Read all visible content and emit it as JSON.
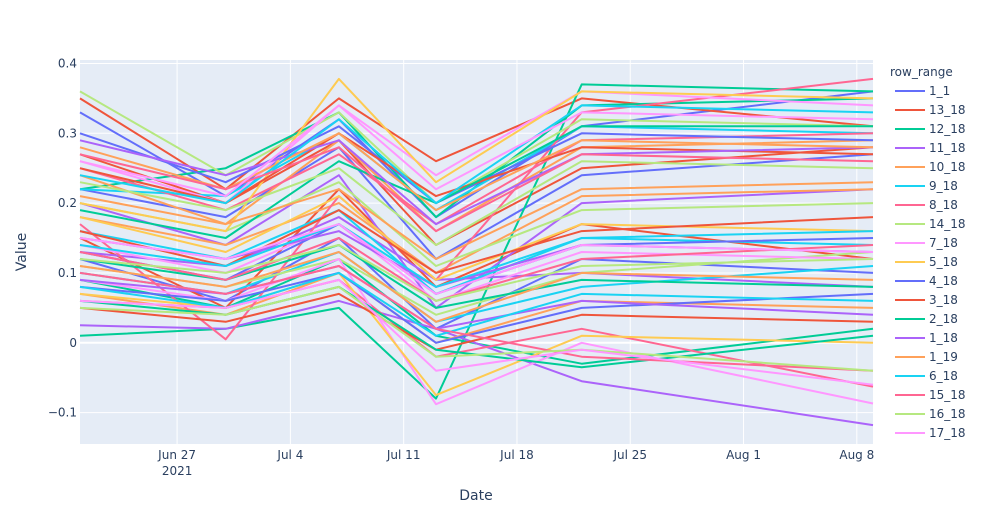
{
  "chart_data": {
    "type": "line",
    "title": "",
    "xlabel": "Date",
    "ylabel": "Value",
    "x_dates": [
      "2021-06-21",
      "2021-06-30",
      "2021-07-07",
      "2021-07-13",
      "2021-07-22",
      "2021-08-09"
    ],
    "xlim": [
      "2021-06-21",
      "2021-08-09"
    ],
    "ylim": [
      -0.145,
      0.405
    ],
    "x_tick_labels": [
      "Jun 27",
      "Jul 4",
      "Jul 11",
      "Jul 18",
      "Jul 25",
      "Aug 1",
      "Aug 8"
    ],
    "x_tick_dates": [
      "2021-06-27",
      "2021-07-04",
      "2021-07-11",
      "2021-07-18",
      "2021-07-25",
      "2021-08-01",
      "2021-08-08"
    ],
    "x_year_label": "2021",
    "y_ticks": [
      -0.1,
      0,
      0.1,
      0.2,
      0.3,
      0.4
    ],
    "y_tick_labels": [
      "−0.1",
      "0",
      "0.1",
      "0.2",
      "0.3",
      "0.4"
    ],
    "grid": true,
    "legend_title": "row_range",
    "legend_position": "right",
    "series": [
      {
        "name": "1_1",
        "color": "#636efa",
        "lines": [
          [
            0.33,
            0.21,
            0.32,
            0.18,
            0.31,
            0.36
          ],
          [
            0.12,
            0.06,
            0.15,
            0.02,
            0.12,
            0.1
          ],
          [
            0.22,
            0.18,
            0.28,
            0.12,
            0.24,
            0.27
          ]
        ]
      },
      {
        "name": "13_18",
        "color": "#EF553B",
        "lines": [
          [
            0.35,
            0.22,
            0.35,
            0.26,
            0.35,
            0.31
          ],
          [
            0.15,
            0.05,
            0.22,
            0.08,
            0.17,
            0.12
          ],
          [
            0.27,
            0.2,
            0.29,
            0.14,
            0.25,
            0.28
          ]
        ]
      },
      {
        "name": "12_18",
        "color": "#00cc96",
        "lines": [
          [
            0.01,
            0.02,
            0.05,
            -0.08,
            0.37,
            0.36
          ],
          [
            0.22,
            0.25,
            0.33,
            0.18,
            0.34,
            0.35
          ],
          [
            0.09,
            0.05,
            0.12,
            0.01,
            -0.03,
            0.02
          ]
        ]
      },
      {
        "name": "11_18",
        "color": "#ab63fa",
        "lines": [
          [
            0.025,
            0.02,
            0.06,
            0.02,
            -0.055,
            -0.118
          ],
          [
            0.13,
            0.11,
            0.18,
            0.09,
            0.1,
            0.08
          ],
          [
            0.2,
            0.14,
            0.24,
            0.05,
            0.2,
            0.22
          ]
        ]
      },
      {
        "name": "10_18",
        "color": "#FFA15A",
        "lines": [
          [
            0.18,
            0.14,
            0.2,
            0.1,
            0.21,
            0.22
          ],
          [
            0.24,
            0.17,
            0.29,
            0.16,
            0.28,
            0.29
          ],
          [
            0.07,
            0.04,
            0.1,
            0.0,
            0.06,
            0.05
          ]
        ]
      },
      {
        "name": "9_18",
        "color": "#19d3f3",
        "lines": [
          [
            0.22,
            0.21,
            0.3,
            0.19,
            0.31,
            0.3
          ],
          [
            0.1,
            0.07,
            0.13,
            0.03,
            0.08,
            0.11
          ],
          [
            0.16,
            0.12,
            0.19,
            0.07,
            0.15,
            0.14
          ]
        ]
      },
      {
        "name": "8_18",
        "color": "#FF6692",
        "lines": [
          [
            0.17,
            0.005,
            0.21,
            0.09,
            0.33,
            0.378
          ],
          [
            0.06,
            0.05,
            0.09,
            -0.02,
            0.02,
            -0.063
          ],
          [
            0.25,
            0.19,
            0.27,
            0.17,
            0.29,
            0.3
          ]
        ]
      },
      {
        "name": "14_18",
        "color": "#B6E880",
        "lines": [
          [
            0.36,
            0.24,
            0.33,
            0.2,
            0.32,
            0.31
          ],
          [
            0.11,
            0.08,
            0.12,
            0.04,
            0.1,
            0.13
          ],
          [
            0.2,
            0.16,
            0.23,
            0.11,
            0.19,
            0.2
          ]
        ]
      },
      {
        "name": "7_18",
        "color": "#FF97FF",
        "lines": [
          [
            0.09,
            0.06,
            0.12,
            -0.088,
            0.0,
            -0.087
          ],
          [
            0.26,
            0.2,
            0.34,
            0.24,
            0.36,
            0.34
          ],
          [
            0.14,
            0.1,
            0.17,
            0.06,
            0.13,
            0.12
          ]
        ]
      },
      {
        "name": "5_18",
        "color": "#FECB52",
        "lines": [
          [
            0.2,
            0.16,
            0.378,
            0.23,
            0.36,
            0.35
          ],
          [
            0.07,
            0.05,
            0.1,
            -0.075,
            0.01,
            0.0
          ],
          [
            0.18,
            0.13,
            0.21,
            0.09,
            0.17,
            0.16
          ]
        ]
      },
      {
        "name": "4_18",
        "color": "#636efa",
        "lines": [
          [
            0.13,
            0.09,
            0.17,
            0.07,
            0.14,
            0.15
          ],
          [
            0.3,
            0.23,
            0.31,
            0.2,
            0.3,
            0.29
          ],
          [
            0.08,
            0.06,
            0.1,
            0.0,
            0.05,
            0.07
          ]
        ]
      },
      {
        "name": "3_18",
        "color": "#EF553B",
        "lines": [
          [
            0.25,
            0.2,
            0.3,
            0.21,
            0.28,
            0.27
          ],
          [
            0.16,
            0.11,
            0.19,
            0.1,
            0.16,
            0.18
          ],
          [
            0.05,
            0.03,
            0.07,
            -0.01,
            0.04,
            0.03
          ]
        ]
      },
      {
        "name": "2_18",
        "color": "#00cc96",
        "lines": [
          [
            0.19,
            0.15,
            0.26,
            0.2,
            0.31,
            0.31
          ],
          [
            0.12,
            0.09,
            0.14,
            0.05,
            0.09,
            0.08
          ],
          [
            0.06,
            0.04,
            0.08,
            -0.01,
            -0.035,
            0.01
          ]
        ]
      },
      {
        "name": "1_18",
        "color": "#ab63fa",
        "lines": [
          [
            0.29,
            0.24,
            0.29,
            0.17,
            0.27,
            0.28
          ],
          [
            0.15,
            0.12,
            0.16,
            0.08,
            0.14,
            0.13
          ],
          [
            0.09,
            0.07,
            0.11,
            0.02,
            0.06,
            0.04
          ]
        ]
      },
      {
        "name": "1_19",
        "color": "#FFA15A",
        "lines": [
          [
            0.21,
            0.17,
            0.22,
            0.12,
            0.22,
            0.23
          ],
          [
            0.11,
            0.08,
            0.13,
            0.03,
            0.1,
            0.09
          ],
          [
            0.28,
            0.22,
            0.3,
            0.19,
            0.29,
            0.28
          ]
        ]
      },
      {
        "name": "6_18",
        "color": "#19d3f3",
        "lines": [
          [
            0.24,
            0.2,
            0.32,
            0.2,
            0.34,
            0.33
          ],
          [
            0.14,
            0.11,
            0.17,
            0.08,
            0.15,
            0.16
          ],
          [
            0.08,
            0.05,
            0.1,
            0.01,
            0.07,
            0.06
          ]
        ]
      },
      {
        "name": "15_18",
        "color": "#FF6692",
        "lines": [
          [
            0.27,
            0.22,
            0.28,
            0.16,
            0.27,
            0.26
          ],
          [
            0.13,
            0.09,
            0.15,
            0.06,
            0.12,
            0.14
          ],
          [
            0.1,
            0.07,
            0.11,
            0.02,
            -0.02,
            -0.04
          ]
        ]
      },
      {
        "name": "16_18",
        "color": "#B6E880",
        "lines": [
          [
            0.23,
            0.19,
            0.25,
            0.14,
            0.26,
            0.25
          ],
          [
            0.12,
            0.1,
            0.14,
            0.06,
            0.11,
            0.12
          ],
          [
            0.05,
            0.04,
            0.08,
            -0.02,
            -0.01,
            -0.04
          ]
        ]
      },
      {
        "name": "17_18",
        "color": "#FF97FF",
        "lines": [
          [
            0.26,
            0.21,
            0.34,
            0.22,
            0.33,
            0.32
          ],
          [
            0.15,
            0.12,
            0.17,
            0.07,
            0.14,
            0.13
          ],
          [
            0.06,
            0.05,
            0.09,
            -0.04,
            -0.01,
            -0.06
          ]
        ]
      }
    ]
  }
}
